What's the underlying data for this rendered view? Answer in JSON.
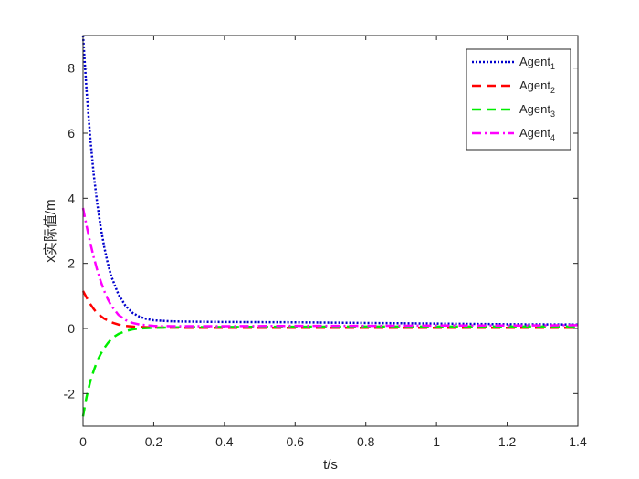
{
  "chart_data": {
    "type": "line",
    "title": "",
    "xlabel": "t/s",
    "ylabel": "x实际值/m",
    "xlim": [
      0,
      1.4
    ],
    "ylim": [
      -3,
      9
    ],
    "xticks": [
      0,
      0.2,
      0.4,
      0.6,
      0.8,
      1,
      1.2,
      1.4
    ],
    "xtick_labels": [
      "0",
      "0.2",
      "0.4",
      "0.6",
      "0.8",
      "1",
      "1.2",
      "1.4"
    ],
    "yticks": [
      -2,
      0,
      2,
      4,
      6,
      8
    ],
    "ytick_labels": [
      "-2",
      "0",
      "2",
      "4",
      "6",
      "8"
    ],
    "grid": false,
    "legend_position": "top-right",
    "series": [
      {
        "name": "Agent",
        "subscript": "1",
        "color": "#0000cc",
        "dash": "dotted",
        "x": [
          0,
          0.01,
          0.02,
          0.03,
          0.04,
          0.05,
          0.06,
          0.07,
          0.08,
          0.1,
          0.12,
          0.14,
          0.16,
          0.18,
          0.2,
          0.25,
          0.3,
          0.4,
          0.6,
          0.8,
          1.0,
          1.2,
          1.4
        ],
        "y": [
          9.0,
          7.3,
          5.9,
          4.75,
          3.85,
          3.1,
          2.5,
          2.0,
          1.6,
          1.05,
          0.7,
          0.48,
          0.36,
          0.29,
          0.25,
          0.22,
          0.21,
          0.2,
          0.19,
          0.17,
          0.15,
          0.13,
          0.12
        ]
      },
      {
        "name": "Agent",
        "subscript": "2",
        "color": "#ff0000",
        "dash": "dashed",
        "x": [
          0,
          0.01,
          0.02,
          0.03,
          0.04,
          0.06,
          0.08,
          0.1,
          0.12,
          0.15,
          0.2,
          0.3,
          0.5,
          0.8,
          1.0,
          1.2,
          1.4
        ],
        "y": [
          1.15,
          0.95,
          0.76,
          0.6,
          0.47,
          0.3,
          0.19,
          0.12,
          0.08,
          0.05,
          0.03,
          0.02,
          0.02,
          0.02,
          0.02,
          0.02,
          0.02
        ]
      },
      {
        "name": "Agent",
        "subscript": "3",
        "color": "#00ee00",
        "dash": "dashed",
        "x": [
          0,
          0.01,
          0.02,
          0.03,
          0.04,
          0.05,
          0.06,
          0.07,
          0.08,
          0.09,
          0.1,
          0.12,
          0.14,
          0.16,
          0.2,
          0.3,
          0.5,
          0.8,
          1.0,
          1.2,
          1.4
        ],
        "y": [
          -2.7,
          -2.1,
          -1.65,
          -1.3,
          -1.0,
          -0.78,
          -0.6,
          -0.45,
          -0.33,
          -0.24,
          -0.17,
          -0.08,
          -0.03,
          0.0,
          0.02,
          0.04,
          0.05,
          0.06,
          0.06,
          0.06,
          0.06
        ]
      },
      {
        "name": "Agent",
        "subscript": "4",
        "color": "#ff00ff",
        "dash": "dashdot",
        "x": [
          0,
          0.01,
          0.02,
          0.03,
          0.04,
          0.05,
          0.06,
          0.07,
          0.08,
          0.1,
          0.12,
          0.14,
          0.16,
          0.2,
          0.25,
          0.3,
          0.4,
          0.6,
          0.8,
          1.0,
          1.2,
          1.4
        ],
        "y": [
          3.7,
          3.15,
          2.65,
          2.2,
          1.8,
          1.45,
          1.15,
          0.9,
          0.7,
          0.42,
          0.26,
          0.17,
          0.12,
          0.08,
          0.07,
          0.07,
          0.07,
          0.08,
          0.08,
          0.09,
          0.09,
          0.1
        ]
      }
    ]
  }
}
